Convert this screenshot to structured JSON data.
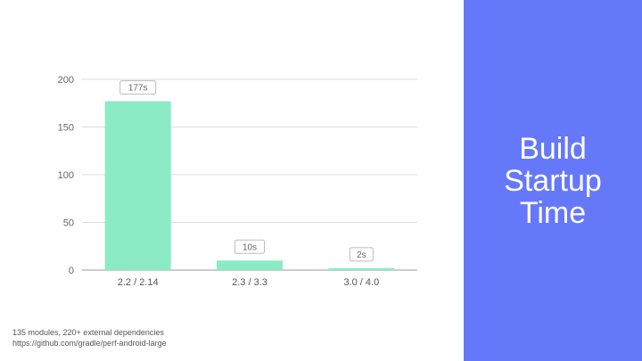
{
  "slide": {
    "title_lines": [
      "Build",
      "Startup",
      "Time"
    ],
    "footnote_lines": [
      "135 modules, 220+ external dependencies",
      "https://github.com/gradle/perf-android-large"
    ]
  },
  "colors": {
    "panel": "#6678fa",
    "bar": "#8aebc4",
    "grid": "#dddddd",
    "axis_text": "#666666",
    "label_border": "#bbbbbb"
  },
  "chart_data": {
    "type": "bar",
    "categories": [
      "2.2 / 2.14",
      "2.3 / 3.3",
      "3.0 / 4.0"
    ],
    "values": [
      177,
      10,
      2
    ],
    "data_labels": [
      "177s",
      "10s",
      "2s"
    ],
    "yticks": [
      0,
      50,
      100,
      150,
      200
    ],
    "ylim": [
      0,
      200
    ],
    "grid": true,
    "legend": "none"
  }
}
